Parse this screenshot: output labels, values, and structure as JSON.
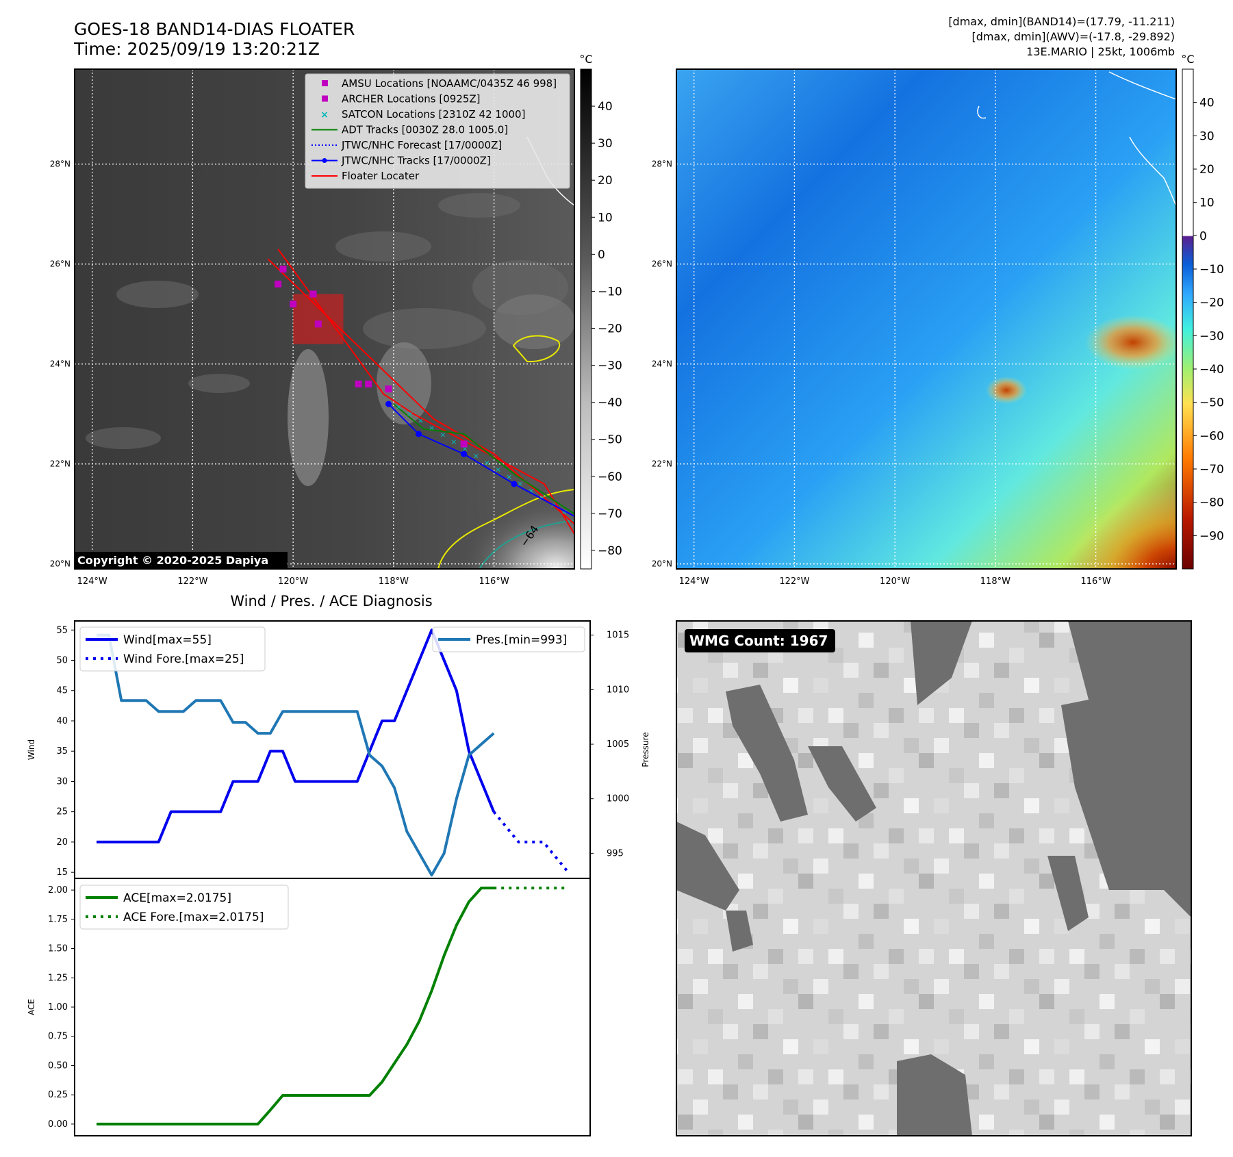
{
  "header": {
    "title_line1": "GOES-18 BAND14-DIAS FLOATER",
    "title_line2": "Time: 2025/09/19 13:20:21Z",
    "right_line1": "[dmax, dmin](BAND14)=(17.79, -11.211)",
    "right_line2": "[dmax, dmin](AWV)=(-17.8, -29.892)",
    "right_line3": "13E.MARIO | 25kt, 1006mb"
  },
  "map_axes": {
    "lat_labels": [
      "28°N",
      "26°N",
      "24°N",
      "22°N",
      "20°N"
    ],
    "lat_values": [
      28,
      26,
      24,
      22,
      20
    ],
    "lon_labels": [
      "124°W",
      "122°W",
      "120°W",
      "118°W",
      "116°W"
    ],
    "lon_values": [
      -124,
      -122,
      -120,
      -118,
      -116
    ],
    "lon_range": [
      -124.35,
      -114.4
    ],
    "lat_range": [
      19.9,
      29.9
    ]
  },
  "ir_map": {
    "colorbar_unit": "°C",
    "colorbar_ticks": [
      "40",
      "30",
      "20",
      "10",
      "0",
      "−10",
      "−20",
      "−30",
      "−40",
      "−50",
      "−60",
      "−70",
      "−80"
    ],
    "colorbar_range": [
      -85,
      50
    ],
    "copyright": "Copyright © 2020-2025 Dapiya",
    "contour_label": "−64",
    "legend": [
      {
        "label": "AMSU Locations [NOAAMC/0435Z 46 998]",
        "marker": "square",
        "color": "#c000c0"
      },
      {
        "label": "ARCHER Locations [0925Z]",
        "marker": "square",
        "color": "#c000c0"
      },
      {
        "label": "SATCON Locations [2310Z 42 1000]",
        "marker": "x",
        "color": "#00b8b8"
      },
      {
        "label": "ADT Tracks [0030Z 28.0 1005.0]",
        "marker": "line",
        "color": "#008000"
      },
      {
        "label": "JTWC/NHC Forecast [17/0000Z]",
        "marker": "dotted",
        "color": "#0000ff"
      },
      {
        "label": "JTWC/NHC Tracks [17/0000Z]",
        "marker": "line-dot",
        "color": "#0000ff"
      },
      {
        "label": "Floater Locater",
        "marker": "line",
        "color": "#ff0000"
      }
    ],
    "jtwc_track": [
      [
        -114.3,
        20.9
      ],
      [
        -115.6,
        21.6
      ],
      [
        -116.6,
        22.2
      ],
      [
        -117.5,
        22.6
      ],
      [
        -118.1,
        23.2
      ]
    ],
    "amsu_points": [
      [
        -120.2,
        25.9
      ],
      [
        -120.3,
        25.6
      ],
      [
        -119.6,
        25.4
      ],
      [
        -120.0,
        25.2
      ],
      [
        -119.5,
        24.8
      ],
      [
        -118.7,
        23.6
      ],
      [
        -118.5,
        23.6
      ],
      [
        -118.1,
        23.5
      ],
      [
        -116.6,
        22.4
      ]
    ],
    "floater_box": {
      "lon": [
        -120.0,
        -119.0
      ],
      "lat": [
        24.4,
        25.4
      ]
    }
  },
  "awv_map": {
    "colorbar_unit": "°C",
    "colorbar_ticks": [
      "40",
      "30",
      "20",
      "10",
      "0",
      "−10",
      "−20",
      "−30",
      "−40",
      "−50",
      "−60",
      "−70",
      "−80",
      "−90"
    ],
    "colorbar_range": [
      -100,
      50
    ]
  },
  "wind_panel_title": "Wind / Pres. / ACE Diagnosis",
  "chart_data": [
    {
      "type": "line",
      "title": "Wind / Pres. / ACE Diagnosis",
      "ylabel": "Wind",
      "ylabel_right": "Pressure",
      "ylim": [
        14,
        56.5
      ],
      "ylim_right": [
        992.7,
        1016.3
      ],
      "yticks": [
        15,
        20,
        25,
        30,
        35,
        40,
        45,
        50,
        55
      ],
      "yticks_right": [
        995,
        1000,
        1005,
        1010,
        1015
      ],
      "series": [
        {
          "name": "Wind[max=55]",
          "style": "solid",
          "color": "#0000ee",
          "x": [
            0,
            1,
            2,
            3,
            4,
            5,
            6,
            7,
            8,
            9,
            10,
            11,
            12,
            13,
            14,
            15,
            16,
            17,
            18,
            19,
            20,
            21,
            22,
            23,
            24,
            25,
            26,
            27,
            28,
            29,
            30,
            31,
            32
          ],
          "values": [
            20,
            20,
            20,
            20,
            20,
            20,
            25,
            25,
            25,
            25,
            25,
            30,
            30,
            30,
            35,
            35,
            30,
            30,
            30,
            30,
            30,
            30,
            35,
            40,
            40,
            45,
            50,
            55,
            50,
            45,
            35,
            30,
            25
          ]
        },
        {
          "name": "Wind Fore.[max=25]",
          "style": "dotted",
          "color": "#0000ee",
          "x": [
            32,
            34,
            36,
            38
          ],
          "values": [
            25,
            20,
            20,
            15
          ]
        },
        {
          "name": "Pres.[min=993]",
          "style": "solid",
          "color": "#1f77b4",
          "axis": "right",
          "x": [
            0,
            1,
            2,
            3,
            4,
            5,
            6,
            7,
            8,
            9,
            10,
            11,
            12,
            13,
            14,
            15,
            16,
            17,
            18,
            19,
            20,
            21,
            22,
            23,
            24,
            25,
            26,
            27,
            28,
            29,
            30,
            31,
            32
          ],
          "values": [
            1015,
            1015,
            1009,
            1009,
            1009,
            1008,
            1008,
            1008,
            1009,
            1009,
            1009,
            1007,
            1007,
            1006,
            1006,
            1008,
            1008,
            1008,
            1008,
            1008,
            1008,
            1008,
            1004,
            1003,
            1001,
            997,
            995,
            993,
            995,
            1000,
            1004,
            1005,
            1006
          ]
        }
      ]
    },
    {
      "type": "line",
      "ylabel": "ACE",
      "ylim": [
        -0.1,
        2.1
      ],
      "yticks": [
        0.0,
        0.25,
        0.5,
        0.75,
        1.0,
        1.25,
        1.5,
        1.75,
        2.0
      ],
      "ytick_labels": [
        "0.00",
        "0.25",
        "0.50",
        "0.75",
        "1.00",
        "1.25",
        "1.50",
        "1.75",
        "2.00"
      ],
      "series": [
        {
          "name": "ACE[max=2.0175]",
          "style": "solid",
          "color": "#008000",
          "x": [
            0,
            1,
            2,
            3,
            4,
            5,
            6,
            7,
            8,
            9,
            10,
            11,
            12,
            13,
            14,
            15,
            16,
            17,
            18,
            19,
            20,
            21,
            22,
            23,
            24,
            25,
            26,
            27,
            28,
            29,
            30,
            31,
            32
          ],
          "values": [
            0,
            0,
            0,
            0,
            0,
            0,
            0,
            0,
            0,
            0,
            0,
            0,
            0,
            0,
            0.12,
            0.245,
            0.245,
            0.245,
            0.245,
            0.245,
            0.245,
            0.245,
            0.245,
            0.36,
            0.52,
            0.68,
            0.88,
            1.14,
            1.44,
            1.7,
            1.9,
            2.0175,
            2.0175
          ]
        },
        {
          "name": "ACE Fore.[max=2.0175]",
          "style": "dotted",
          "color": "#008000",
          "x": [
            32,
            36,
            38
          ],
          "values": [
            2.0175,
            2.0175,
            2.0175
          ]
        }
      ]
    }
  ],
  "wmg": {
    "label": "WMG Count: 1967"
  }
}
